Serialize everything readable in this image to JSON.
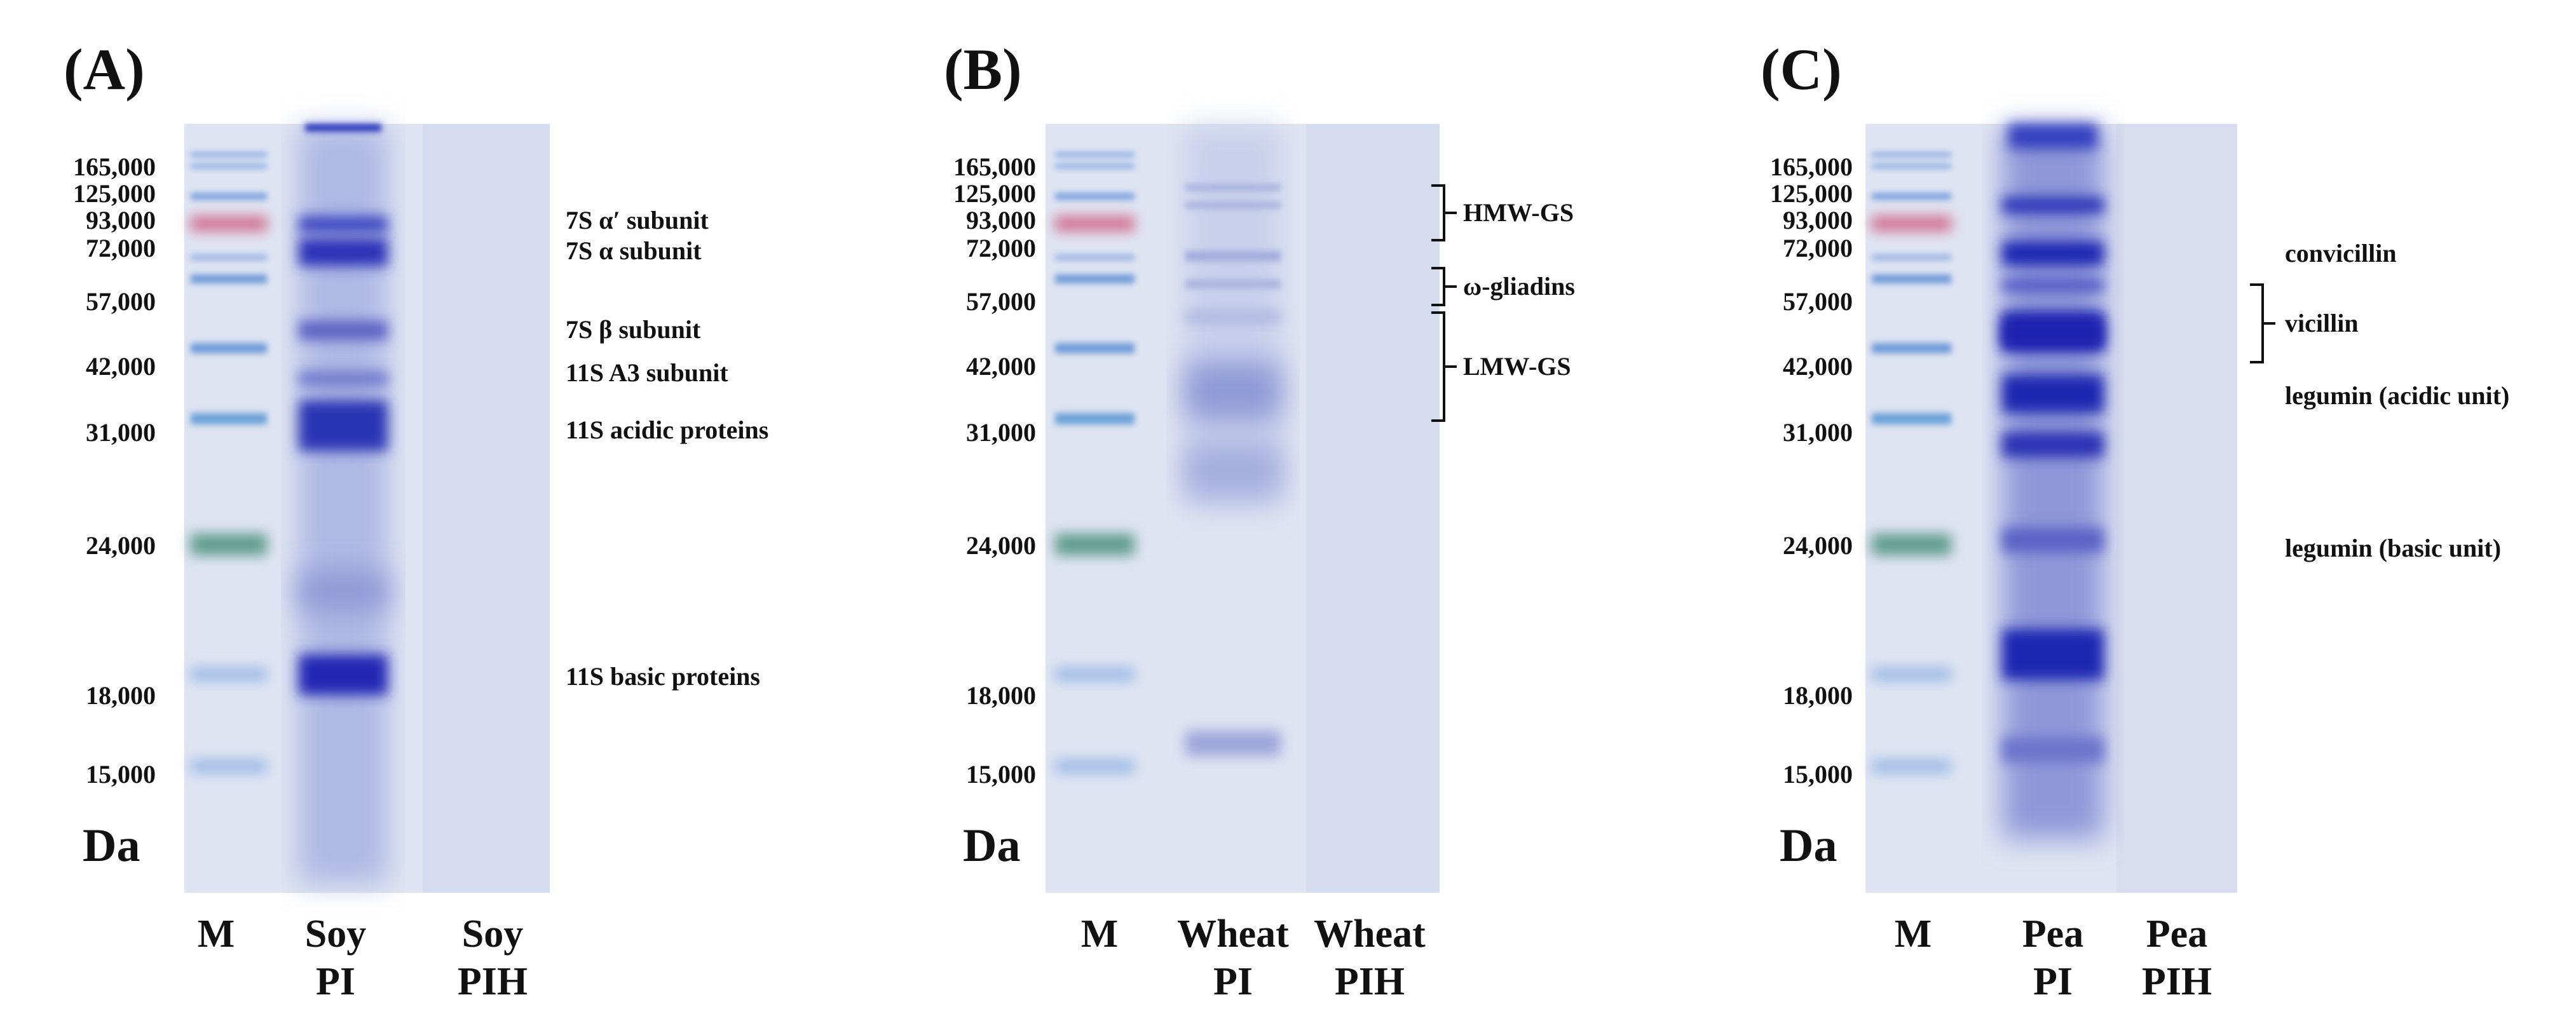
{
  "colors": {
    "gel_background": "#dfe4f2",
    "stain_dark": "#2b31b8",
    "stain_medium": "#5a66cc",
    "marker_blue": "#5a8fd6",
    "marker_red": "#cc6f8e",
    "marker_green": "#5e9c8c"
  },
  "panels": [
    {
      "label": "(A)",
      "unit": "Da",
      "mw_labels": [
        "165,000",
        "125,000",
        "93,000",
        "72,000",
        "57,000",
        "42,000",
        "31,000",
        "24,000",
        "18,000",
        "15,000"
      ],
      "lanes": [
        {
          "line1": "M",
          "line2": ""
        },
        {
          "line1": "Soy",
          "line2": "PI"
        },
        {
          "line1": "Soy",
          "line2": "PIH"
        }
      ],
      "annotations": [
        "7S α′ subunit",
        "7S α subunit",
        "7S β subunit",
        "11S A3 subunit",
        "11S acidic proteins",
        "11S basic proteins"
      ]
    },
    {
      "label": "(B)",
      "unit": "Da",
      "mw_labels": [
        "165,000",
        "125,000",
        "93,000",
        "72,000",
        "57,000",
        "42,000",
        "31,000",
        "24,000",
        "18,000",
        "15,000"
      ],
      "lanes": [
        {
          "line1": "M",
          "line2": ""
        },
        {
          "line1": "Wheat",
          "line2": "PI"
        },
        {
          "line1": "Wheat",
          "line2": "PIH"
        }
      ],
      "annotations": [
        "HMW-GS",
        "ω-gliadins",
        "LMW-GS"
      ]
    },
    {
      "label": "(C)",
      "unit": "Da",
      "mw_labels": [
        "165,000",
        "125,000",
        "93,000",
        "72,000",
        "57,000",
        "42,000",
        "31,000",
        "24,000",
        "18,000",
        "15,000"
      ],
      "lanes": [
        {
          "line1": "M",
          "line2": ""
        },
        {
          "line1": "Pea",
          "line2": "PI"
        },
        {
          "line1": "Pea",
          "line2": "PIH"
        }
      ],
      "annotations": [
        "convicillin",
        "vicillin",
        "legumin (acidic unit)",
        "legumin (basic unit)"
      ]
    }
  ]
}
